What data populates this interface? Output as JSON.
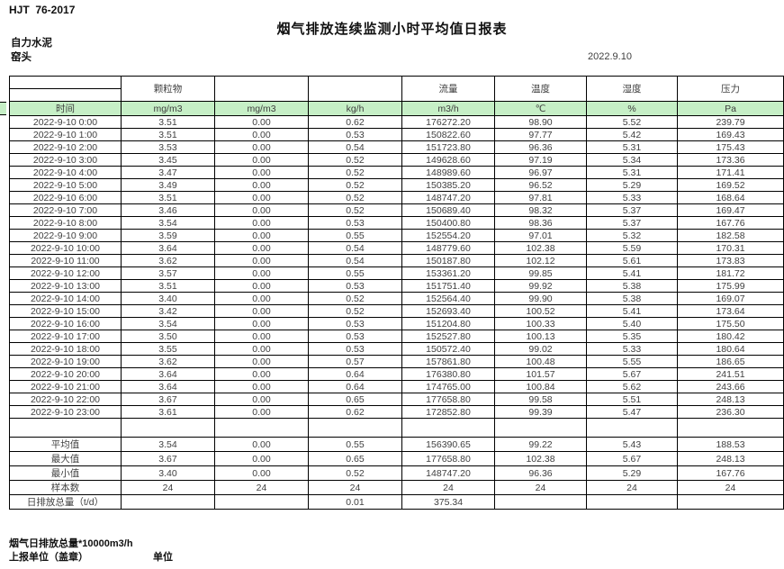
{
  "page": {
    "doc_code": "HJT  76-2017",
    "title": "烟气排放连续监测小时平均值日报表",
    "company": "自力水泥",
    "monitoring_point": "窑头",
    "date": "2022.9.10"
  },
  "table": {
    "group_headers": [
      "",
      "颗粒物",
      "",
      "",
      "流量",
      "温度",
      "湿度",
      "压力"
    ],
    "unit_row": [
      "时间",
      "mg/m3",
      "mg/m3",
      "kg/h",
      "m3/h",
      "℃",
      "%",
      "Pa"
    ],
    "rows": [
      [
        "2022-9-10 0:00",
        "3.51",
        "0.00",
        "0.62",
        "176272.20",
        "98.90",
        "5.52",
        "239.79"
      ],
      [
        "2022-9-10 1:00",
        "3.51",
        "0.00",
        "0.53",
        "150822.60",
        "97.77",
        "5.42",
        "169.43"
      ],
      [
        "2022-9-10 2:00",
        "3.53",
        "0.00",
        "0.54",
        "151723.80",
        "96.36",
        "5.31",
        "175.43"
      ],
      [
        "2022-9-10 3:00",
        "3.45",
        "0.00",
        "0.52",
        "149628.60",
        "97.19",
        "5.34",
        "173.36"
      ],
      [
        "2022-9-10 4:00",
        "3.47",
        "0.00",
        "0.52",
        "148989.60",
        "96.97",
        "5.31",
        "171.41"
      ],
      [
        "2022-9-10 5:00",
        "3.49",
        "0.00",
        "0.52",
        "150385.20",
        "96.52",
        "5.29",
        "169.52"
      ],
      [
        "2022-9-10 6:00",
        "3.51",
        "0.00",
        "0.52",
        "148747.20",
        "97.81",
        "5.33",
        "168.64"
      ],
      [
        "2022-9-10 7:00",
        "3.46",
        "0.00",
        "0.52",
        "150689.40",
        "98.32",
        "5.37",
        "169.47"
      ],
      [
        "2022-9-10 8:00",
        "3.54",
        "0.00",
        "0.53",
        "150400.80",
        "98.36",
        "5.37",
        "167.76"
      ],
      [
        "2022-9-10 9:00",
        "3.59",
        "0.00",
        "0.55",
        "152554.20",
        "97.01",
        "5.32",
        "182.58"
      ],
      [
        "2022-9-10 10:00",
        "3.64",
        "0.00",
        "0.54",
        "148779.60",
        "102.38",
        "5.59",
        "170.31"
      ],
      [
        "2022-9-10 11:00",
        "3.62",
        "0.00",
        "0.54",
        "150187.80",
        "102.12",
        "5.61",
        "173.83"
      ],
      [
        "2022-9-10 12:00",
        "3.57",
        "0.00",
        "0.55",
        "153361.20",
        "99.85",
        "5.41",
        "181.72"
      ],
      [
        "2022-9-10 13:00",
        "3.51",
        "0.00",
        "0.53",
        "151751.40",
        "99.92",
        "5.38",
        "175.99"
      ],
      [
        "2022-9-10 14:00",
        "3.40",
        "0.00",
        "0.52",
        "152564.40",
        "99.90",
        "5.38",
        "169.07"
      ],
      [
        "2022-9-10 15:00",
        "3.42",
        "0.00",
        "0.52",
        "152693.40",
        "100.52",
        "5.41",
        "173.64"
      ],
      [
        "2022-9-10 16:00",
        "3.54",
        "0.00",
        "0.53",
        "151204.80",
        "100.33",
        "5.40",
        "175.50"
      ],
      [
        "2022-9-10 17:00",
        "3.50",
        "0.00",
        "0.53",
        "152527.80",
        "100.13",
        "5.35",
        "180.42"
      ],
      [
        "2022-9-10 18:00",
        "3.55",
        "0.00",
        "0.53",
        "150572.40",
        "99.02",
        "5.33",
        "180.64"
      ],
      [
        "2022-9-10 19:00",
        "3.62",
        "0.00",
        "0.57",
        "157861.80",
        "100.48",
        "5.55",
        "186.65"
      ],
      [
        "2022-9-10 20:00",
        "3.64",
        "0.00",
        "0.64",
        "176380.80",
        "101.57",
        "5.67",
        "241.51"
      ],
      [
        "2022-9-10 21:00",
        "3.64",
        "0.00",
        "0.64",
        "174765.00",
        "100.84",
        "5.62",
        "243.66"
      ],
      [
        "2022-9-10 22:00",
        "3.67",
        "0.00",
        "0.65",
        "177658.80",
        "99.58",
        "5.51",
        "248.13"
      ],
      [
        "2022-9-10 23:00",
        "3.61",
        "0.00",
        "0.62",
        "172852.80",
        "99.39",
        "5.47",
        "236.30"
      ]
    ],
    "summary": [
      {
        "label": "平均值",
        "values": [
          "3.54",
          "0.00",
          "0.55",
          "156390.65",
          "99.22",
          "5.43",
          "188.53"
        ]
      },
      {
        "label": "最大值",
        "values": [
          "3.67",
          "0.00",
          "0.65",
          "177658.80",
          "102.38",
          "5.67",
          "248.13"
        ]
      },
      {
        "label": "最小值",
        "values": [
          "3.40",
          "0.00",
          "0.52",
          "148747.20",
          "96.36",
          "5.29",
          "167.76"
        ]
      },
      {
        "label": "样本数",
        "values": [
          "24",
          "24",
          "24",
          "24",
          "24",
          "24",
          "24"
        ]
      },
      {
        "label": "日排放总量（t/d）",
        "values": [
          "",
          "",
          "0.01",
          "375.34",
          "",
          "",
          ""
        ]
      }
    ]
  },
  "footer": {
    "note": "烟气日排放总量*10000m3/h",
    "report_unit_label": "上报单位（盖章）",
    "unit_label": "单位"
  },
  "colors": {
    "unit_row_bg": "#c6efc6",
    "grid_line": "#000000",
    "data_text": "#3f3f3f"
  }
}
